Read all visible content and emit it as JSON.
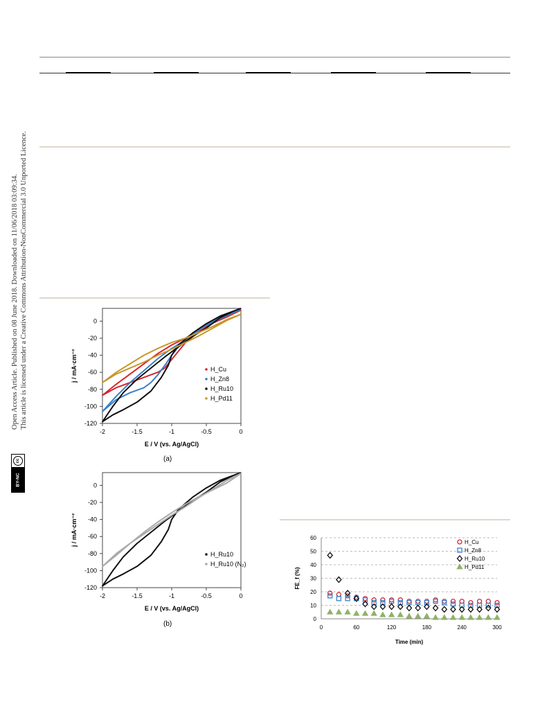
{
  "sidebar": {
    "line1": "Open Access Article. Published on 08 June 2018. Downloaded on 11/06/2018 03:09:34.",
    "line2": "This article is licensed under a Creative Commons Attribution-NonCommercial 3.0 Unported Licence.",
    "badge_cc": "cc",
    "badge_license": "BY-NC"
  },
  "figure_a": {
    "caption": "(a)"
  },
  "figure_b": {
    "caption": "(b)"
  },
  "chart_data": [
    {
      "type": "line",
      "panel": "(a)",
      "xlabel": "E / V (vs. Ag/AgCl)",
      "ylabel": "j / mA·cm⁻²",
      "xlim": [
        -2,
        0
      ],
      "ylim": [
        -120,
        15
      ],
      "xticks": [
        "-2",
        "-1.5",
        "-1",
        "-0.5",
        "0"
      ],
      "yticks": [
        "0",
        "-20",
        "-40",
        "-60",
        "-80",
        "-100",
        "-120"
      ],
      "legend_position": "right",
      "series": [
        {
          "name": "H_Cu",
          "color": "#d6262e",
          "forward": [
            [
              0,
              13
            ],
            [
              -0.2,
              8
            ],
            [
              -0.4,
              0
            ],
            [
              -0.6,
              -10
            ],
            [
              -0.8,
              -20
            ],
            [
              -1,
              -28
            ],
            [
              -1.2,
              -38
            ],
            [
              -1.4,
              -50
            ],
            [
              -1.6,
              -62
            ],
            [
              -1.8,
              -74
            ],
            [
              -2,
              -87
            ]
          ],
          "reverse": [
            [
              -2,
              -87
            ],
            [
              -1.8,
              -78
            ],
            [
              -1.6,
              -72
            ],
            [
              -1.4,
              -66
            ],
            [
              -1.2,
              -60
            ],
            [
              -1.1,
              -55
            ],
            [
              -1,
              -45
            ],
            [
              -0.9,
              -35
            ],
            [
              -0.8,
              -25
            ],
            [
              -0.6,
              -12
            ],
            [
              -0.4,
              -2
            ],
            [
              -0.2,
              5
            ],
            [
              0,
              13
            ]
          ]
        },
        {
          "name": "H_Zn8",
          "color": "#3a7fc8",
          "forward": [
            [
              0,
              14
            ],
            [
              -0.2,
              9
            ],
            [
              -0.4,
              0
            ],
            [
              -0.6,
              -10
            ],
            [
              -0.8,
              -22
            ],
            [
              -1,
              -32
            ],
            [
              -1.2,
              -44
            ],
            [
              -1.4,
              -58
            ],
            [
              -1.6,
              -72
            ],
            [
              -1.8,
              -88
            ],
            [
              -2,
              -106
            ]
          ],
          "reverse": [
            [
              -2,
              -106
            ],
            [
              -1.8,
              -92
            ],
            [
              -1.6,
              -84
            ],
            [
              -1.4,
              -78
            ],
            [
              -1.3,
              -72
            ],
            [
              -1.2,
              -63
            ],
            [
              -1.1,
              -52
            ],
            [
              -1,
              -40
            ],
            [
              -0.9,
              -30
            ],
            [
              -0.7,
              -15
            ],
            [
              -0.5,
              -5
            ],
            [
              -0.3,
              3
            ],
            [
              0,
              14
            ]
          ]
        },
        {
          "name": "H_Ru10",
          "color": "#111111",
          "forward": [
            [
              0,
              15
            ],
            [
              -0.1,
              12
            ],
            [
              -0.3,
              4
            ],
            [
              -0.5,
              -8
            ],
            [
              -0.7,
              -18
            ],
            [
              -0.9,
              -30
            ],
            [
              -1.1,
              -42
            ],
            [
              -1.3,
              -55
            ],
            [
              -1.5,
              -68
            ],
            [
              -1.7,
              -84
            ],
            [
              -1.85,
              -100
            ],
            [
              -2,
              -118
            ]
          ],
          "reverse": [
            [
              -2,
              -118
            ],
            [
              -1.85,
              -110
            ],
            [
              -1.7,
              -104
            ],
            [
              -1.5,
              -95
            ],
            [
              -1.3,
              -82
            ],
            [
              -1.15,
              -66
            ],
            [
              -1.05,
              -52
            ],
            [
              -1,
              -40
            ],
            [
              -0.9,
              -28
            ],
            [
              -0.7,
              -14
            ],
            [
              -0.5,
              -3
            ],
            [
              -0.3,
              6
            ],
            [
              -0.1,
              12
            ],
            [
              0,
              15
            ]
          ]
        },
        {
          "name": "H_Pd11",
          "color": "#c8972e",
          "forward": [
            [
              0,
              8
            ],
            [
              -0.2,
              2
            ],
            [
              -0.4,
              -6
            ],
            [
              -0.6,
              -13
            ],
            [
              -0.8,
              -20
            ],
            [
              -1,
              -25
            ],
            [
              -1.2,
              -32
            ],
            [
              -1.4,
              -40
            ],
            [
              -1.6,
              -50
            ],
            [
              -1.8,
              -60
            ],
            [
              -2,
              -72
            ]
          ],
          "reverse": [
            [
              -2,
              -72
            ],
            [
              -1.8,
              -62
            ],
            [
              -1.6,
              -55
            ],
            [
              -1.4,
              -48
            ],
            [
              -1.2,
              -40
            ],
            [
              -1,
              -33
            ],
            [
              -0.8,
              -25
            ],
            [
              -0.6,
              -17
            ],
            [
              -0.4,
              -8
            ],
            [
              -0.2,
              1
            ],
            [
              0,
              8
            ]
          ]
        }
      ]
    },
    {
      "type": "line",
      "panel": "(b)",
      "xlabel": "E / V (vs. Ag/AgCl)",
      "ylabel": "j / mA·cm⁻²",
      "xlim": [
        -2,
        0
      ],
      "ylim": [
        -120,
        15
      ],
      "xticks": [
        "-2",
        "-1.5",
        "-1",
        "-0.5",
        "0"
      ],
      "yticks": [
        "0",
        "-20",
        "-40",
        "-60",
        "-80",
        "-100",
        "-120"
      ],
      "legend_position": "right",
      "series": [
        {
          "name": "H_Ru10",
          "color": "#111111",
          "forward": [
            [
              0,
              15
            ],
            [
              -0.1,
              12
            ],
            [
              -0.3,
              4
            ],
            [
              -0.5,
              -8
            ],
            [
              -0.7,
              -18
            ],
            [
              -0.9,
              -30
            ],
            [
              -1.1,
              -42
            ],
            [
              -1.3,
              -55
            ],
            [
              -1.5,
              -68
            ],
            [
              -1.7,
              -84
            ],
            [
              -1.85,
              -100
            ],
            [
              -2,
              -118
            ]
          ],
          "reverse": [
            [
              -2,
              -118
            ],
            [
              -1.85,
              -110
            ],
            [
              -1.7,
              -104
            ],
            [
              -1.5,
              -95
            ],
            [
              -1.3,
              -82
            ],
            [
              -1.15,
              -66
            ],
            [
              -1.05,
              -52
            ],
            [
              -1,
              -40
            ],
            [
              -0.9,
              -28
            ],
            [
              -0.7,
              -14
            ],
            [
              -0.5,
              -3
            ],
            [
              -0.3,
              6
            ],
            [
              -0.1,
              12
            ],
            [
              0,
              15
            ]
          ]
        },
        {
          "name": "H_Ru10 (N₂)",
          "color": "#aaaaaa",
          "forward": [
            [
              0,
              14
            ],
            [
              -0.2,
              6
            ],
            [
              -0.4,
              -4
            ],
            [
              -0.6,
              -14
            ],
            [
              -0.8,
              -25
            ],
            [
              -1,
              -35
            ],
            [
              -1.2,
              -46
            ],
            [
              -1.4,
              -57
            ],
            [
              -1.6,
              -68
            ],
            [
              -1.8,
              -80
            ],
            [
              -2,
              -95
            ]
          ],
          "reverse": [
            [
              -2,
              -95
            ],
            [
              -1.8,
              -82
            ],
            [
              -1.6,
              -68
            ],
            [
              -1.4,
              -55
            ],
            [
              -1.2,
              -43
            ],
            [
              -1,
              -32
            ],
            [
              -0.8,
              -22
            ],
            [
              -0.6,
              -13
            ],
            [
              -0.4,
              -5
            ],
            [
              -0.2,
              3
            ],
            [
              0,
              14
            ]
          ]
        }
      ]
    },
    {
      "type": "scatter",
      "xlabel": "Time (min)",
      "ylabel": "FE_f (%)",
      "xlim": [
        0,
        300
      ],
      "ylim": [
        0,
        60
      ],
      "xticks": [
        "0",
        "60",
        "120",
        "180",
        "240",
        "300"
      ],
      "yticks": [
        "0",
        "10",
        "20",
        "30",
        "40",
        "50",
        "60"
      ],
      "grid": "horizontal dashed",
      "legend_position": "top-right",
      "x": [
        15,
        30,
        45,
        60,
        75,
        90,
        105,
        120,
        135,
        150,
        165,
        180,
        195,
        210,
        225,
        240,
        255,
        270,
        285,
        300
      ],
      "series": [
        {
          "name": "H_Cu",
          "marker": "circle",
          "color": "#d6262e",
          "values": [
            19,
            18,
            17,
            16,
            15,
            14,
            14,
            14,
            14,
            13,
            13,
            13,
            14,
            13,
            13,
            13,
            12,
            13,
            13,
            12
          ]
        },
        {
          "name": "H_Zn8",
          "marker": "square",
          "color": "#3a7fc8",
          "values": [
            17,
            15,
            15,
            15,
            14,
            12,
            12,
            13,
            12,
            12,
            12,
            12,
            13,
            12,
            11,
            10,
            10,
            10,
            10,
            10
          ]
        },
        {
          "name": "H_Ru10",
          "marker": "diamond",
          "color": "#111111",
          "values": [
            47,
            29,
            19,
            15,
            11,
            9,
            9,
            9,
            9,
            8,
            8,
            9,
            8,
            7,
            7,
            7,
            7,
            7,
            8,
            7
          ]
        },
        {
          "name": "H_Pd11",
          "marker": "triangle",
          "color": "#8fb266",
          "values": [
            5,
            5,
            5,
            4,
            4,
            4,
            3,
            3,
            3,
            2,
            2,
            2,
            1,
            1,
            1,
            1,
            1,
            1,
            1,
            1
          ]
        }
      ]
    }
  ]
}
